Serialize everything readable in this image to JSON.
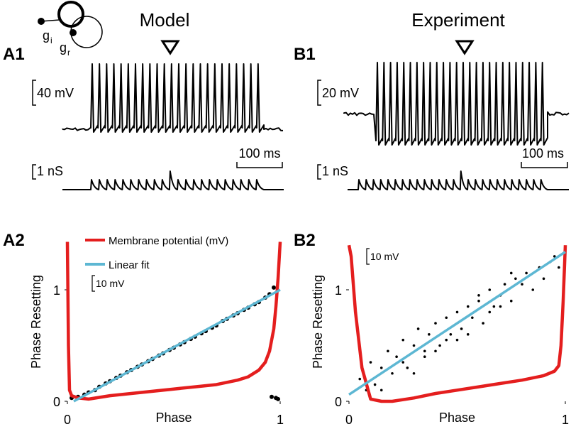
{
  "model_title": "Model",
  "experiment_title": "Experiment",
  "panel_labels": {
    "a1": "A1",
    "b1": "B1",
    "a2": "A2",
    "b2": "B2"
  },
  "diagram": {
    "gi": "g",
    "gi_sub": "i",
    "gr": "g",
    "gr_sub": "r"
  },
  "a1_scales": {
    "voltage": "40 mV",
    "conductance": "1 nS",
    "time": "100 ms"
  },
  "b1_scales": {
    "voltage": "20 mV",
    "conductance": "1 nS",
    "time": "100 ms"
  },
  "chart_data": [
    {
      "type": "scatter",
      "x_label": "Phase",
      "y_label": "Phase Resetting",
      "xlim": [
        0,
        1
      ],
      "ylim": [
        0,
        1.45
      ],
      "xticks": [
        0,
        1
      ],
      "yticks": [
        0,
        1
      ],
      "scale_label": "10 mV",
      "legend": "upper left",
      "series": [
        {
          "name": "Membrane potential (mV)",
          "color": "#e41e1e",
          "x": [
            0,
            0.005,
            0.01,
            0.02,
            0.05,
            0.1,
            0.2,
            0.3,
            0.4,
            0.5,
            0.6,
            0.7,
            0.8,
            0.85,
            0.9,
            0.93,
            0.95,
            0.97,
            0.98,
            0.99,
            1.0
          ],
          "values": [
            1.43,
            0.5,
            0.1,
            0.05,
            0.03,
            0.02,
            0.05,
            0.07,
            0.09,
            0.11,
            0.13,
            0.15,
            0.19,
            0.22,
            0.28,
            0.35,
            0.45,
            0.65,
            0.85,
            1.1,
            1.43
          ]
        },
        {
          "name": "Linear fit",
          "color": "#5db7d3",
          "x": [
            0.03,
            1
          ],
          "values": [
            0,
            1
          ]
        }
      ],
      "points": {
        "color": "#000000",
        "x": [
          0.02,
          0.05,
          0.08,
          0.1,
          0.13,
          0.15,
          0.18,
          0.2,
          0.23,
          0.25,
          0.28,
          0.3,
          0.33,
          0.35,
          0.38,
          0.4,
          0.43,
          0.45,
          0.48,
          0.5,
          0.53,
          0.55,
          0.58,
          0.6,
          0.63,
          0.65,
          0.68,
          0.7,
          0.73,
          0.75,
          0.78,
          0.8,
          0.83,
          0.85,
          0.88,
          0.9,
          0.93,
          0.95,
          0.97,
          0.98,
          0.96,
          0.99
        ],
        "values": [
          0.03,
          0.04,
          0.06,
          0.08,
          0.1,
          0.13,
          0.16,
          0.18,
          0.21,
          0.23,
          0.26,
          0.28,
          0.31,
          0.33,
          0.36,
          0.38,
          0.41,
          0.43,
          0.46,
          0.48,
          0.51,
          0.53,
          0.56,
          0.58,
          0.61,
          0.63,
          0.66,
          0.68,
          0.72,
          0.74,
          0.77,
          0.79,
          0.82,
          0.84,
          0.87,
          0.89,
          0.93,
          0.96,
          1.02,
          0.03,
          0.04,
          0.02
        ]
      }
    },
    {
      "type": "scatter",
      "x_label": "Phase",
      "y_label": "Phase Resetting",
      "xlim": [
        0,
        1
      ],
      "ylim": [
        0,
        1.45
      ],
      "xticks": [
        0,
        1
      ],
      "yticks": [
        0,
        1
      ],
      "scale_label": "10 mV",
      "series": [
        {
          "color": "#e41e1e",
          "x": [
            0,
            0.01,
            0.03,
            0.06,
            0.1,
            0.15,
            0.2,
            0.3,
            0.4,
            0.5,
            0.6,
            0.7,
            0.8,
            0.9,
            0.95,
            0.97,
            0.98,
            0.99,
            1.0
          ],
          "values": [
            1.4,
            1.3,
            0.8,
            0.3,
            0.02,
            0,
            0,
            0.03,
            0.07,
            0.1,
            0.13,
            0.16,
            0.19,
            0.23,
            0.27,
            0.32,
            0.5,
            0.9,
            1.4
          ]
        },
        {
          "color": "#5db7d3",
          "x": [
            0,
            1
          ],
          "values": [
            0.06,
            1.34
          ]
        }
      ],
      "points": {
        "color": "#000000",
        "x": [
          0.05,
          0.08,
          0.1,
          0.12,
          0.15,
          0.18,
          0.2,
          0.22,
          0.25,
          0.27,
          0.3,
          0.32,
          0.35,
          0.37,
          0.4,
          0.42,
          0.45,
          0.47,
          0.5,
          0.52,
          0.55,
          0.57,
          0.6,
          0.62,
          0.65,
          0.67,
          0.7,
          0.72,
          0.75,
          0.77,
          0.8,
          0.82,
          0.85,
          0.88,
          0.9,
          0.93,
          0.95,
          0.97,
          0.15,
          0.3,
          0.45,
          0.6,
          0.75,
          0.4,
          0.55,
          0.25,
          0.65,
          0.35,
          0.5,
          0.7
        ],
        "values": [
          0.2,
          0.1,
          0.35,
          0.15,
          0.3,
          0.45,
          0.25,
          0.4,
          0.55,
          0.3,
          0.5,
          0.65,
          0.4,
          0.6,
          0.7,
          0.5,
          0.75,
          0.6,
          0.8,
          0.65,
          0.85,
          0.75,
          0.9,
          0.7,
          1.0,
          0.85,
          0.95,
          1.05,
          0.9,
          1.1,
          1.05,
          1.15,
          1.0,
          1.2,
          1.1,
          1.25,
          1.3,
          1.2,
          0.1,
          0.25,
          0.55,
          0.95,
          1.15,
          0.45,
          0.6,
          0.35,
          0.8,
          0.45,
          0.55,
          0.85
        ]
      }
    }
  ]
}
